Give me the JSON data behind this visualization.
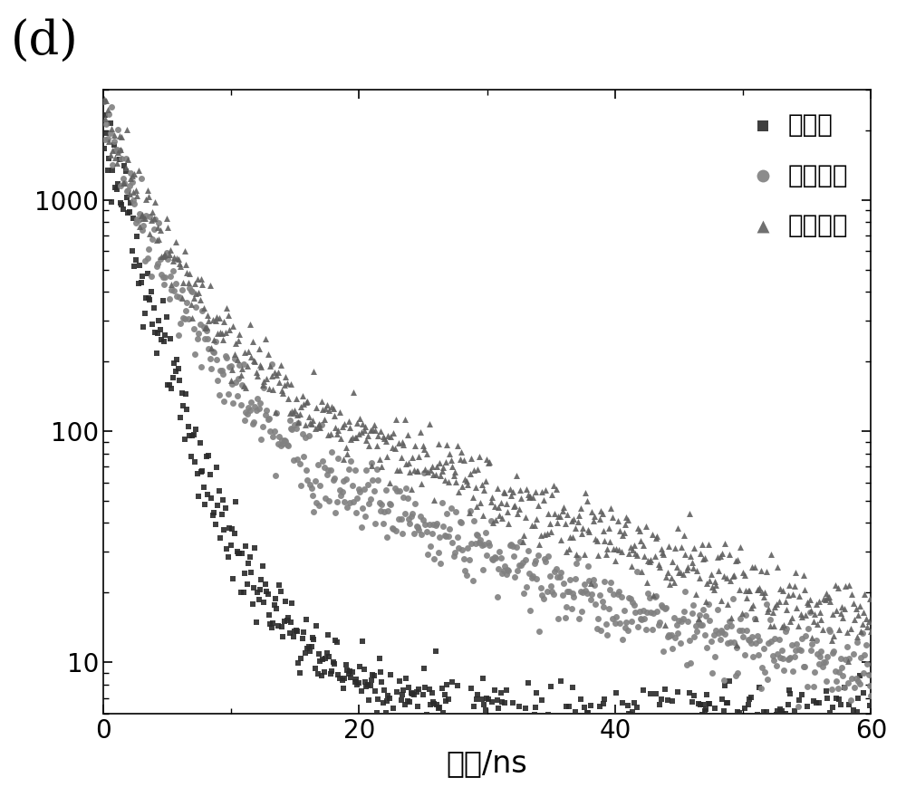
{
  "title_label": "(d)",
  "xlabel": "时间/ns",
  "ylabel": "",
  "xlim": [
    0,
    60
  ],
  "ylim_log": [
    6,
    3000
  ],
  "yticks": [
    10,
    100,
    1000
  ],
  "xtick_labels": [
    "0",
    "20",
    "40",
    "60"
  ],
  "xticks": [
    0,
    20,
    40,
    60
  ],
  "series": [
    {
      "label": "异丙醇",
      "marker": "s",
      "color": "#2a2a2a",
      "markersize": 4,
      "A1": 2000,
      "tau1": 2.0,
      "A2": 80,
      "tau2": 6.0,
      "floor": 5.5,
      "noise_scale": 0.18,
      "n_points": 600
    },
    {
      "label": "乙酸乙酯",
      "marker": "o",
      "color": "#808080",
      "markersize": 5,
      "A1": 2000,
      "tau1": 2.8,
      "A2": 200,
      "tau2": 14.0,
      "floor": 6.5,
      "noise_scale": 0.18,
      "n_points": 600
    },
    {
      "label": "乙酸丁酯",
      "marker": "^",
      "color": "#606060",
      "markersize": 5,
      "A1": 2000,
      "tau1": 3.2,
      "A2": 260,
      "tau2": 18.0,
      "floor": 6.0,
      "noise_scale": 0.18,
      "n_points": 600
    }
  ],
  "background_color": "#ffffff",
  "legend_fontsize": 20,
  "axis_label_fontsize": 24,
  "tick_fontsize": 20,
  "panel_label_fontsize": 38,
  "figsize": [
    10.0,
    8.8
  ],
  "dpi": 100
}
